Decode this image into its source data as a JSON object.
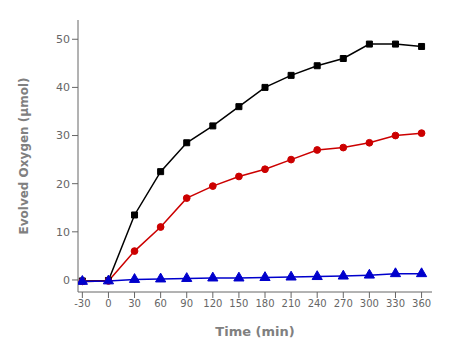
{
  "chart_data": {
    "type": "line",
    "xlabel": "Time (min)",
    "ylabel": "Evolved Oxygen (µmol)",
    "x": [
      -30,
      0,
      30,
      60,
      90,
      120,
      150,
      180,
      210,
      240,
      270,
      300,
      330,
      360
    ],
    "series": [
      {
        "color": "#000000",
        "marker": "square",
        "values": [
          -0.2,
          -0.1,
          13.5,
          22.5,
          28.5,
          32.0,
          36.0,
          40.0,
          42.5,
          44.5,
          46.0,
          49.0,
          49.0,
          48.5
        ]
      },
      {
        "color": "#cc0000",
        "marker": "circle",
        "values": [
          -0.3,
          -0.2,
          6.0,
          11.0,
          17.0,
          19.5,
          21.5,
          23.0,
          25.0,
          27.0,
          27.5,
          28.5,
          30.0,
          30.5
        ]
      },
      {
        "color": "#0000cc",
        "marker": "triangle",
        "values": [
          -0.3,
          -0.2,
          0.1,
          0.2,
          0.3,
          0.4,
          0.4,
          0.5,
          0.6,
          0.7,
          0.8,
          1.0,
          1.3,
          1.3
        ]
      }
    ],
    "xlim": [
      -35,
      372
    ],
    "ylim": [
      -2.5,
      54
    ],
    "xticks": [
      -30,
      0,
      30,
      60,
      90,
      120,
      150,
      180,
      210,
      240,
      270,
      300,
      330,
      360
    ],
    "yticks": [
      0,
      10,
      20,
      30,
      40,
      50
    ],
    "grid": false
  }
}
